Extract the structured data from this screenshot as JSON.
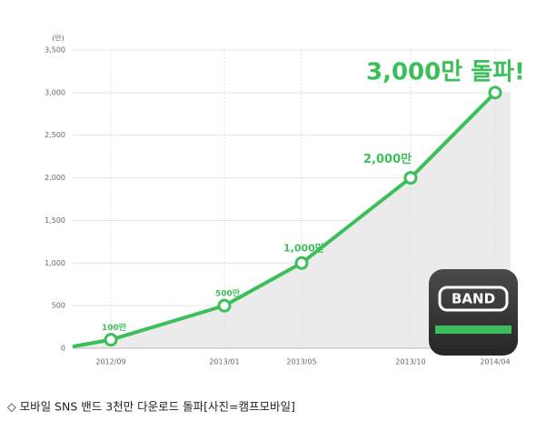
{
  "chart_data": {
    "type": "line",
    "y_unit": "(만)",
    "categories": [
      null,
      "2012/09",
      "2013/01",
      "2013/05",
      "2013/10",
      "2014/04"
    ],
    "values": [
      20,
      100,
      500,
      1000,
      2000,
      3000
    ],
    "value_labels": [
      null,
      "100만",
      "500만",
      "1,000만",
      "2,000만",
      "3,000만 돌파!"
    ],
    "color": "#3cbf5a",
    "ylim": [
      0,
      3500
    ],
    "yticks": [
      0,
      500,
      {
        "value": 1000,
        "label": "1,000"
      },
      {
        "value": 1500,
        "label": "1,500"
      },
      {
        "value": 2000,
        "label": "2,000"
      },
      {
        "value": 2500,
        "label": "2,500"
      },
      {
        "value": 3000,
        "label": "3,000"
      },
      {
        "value": 3500,
        "label": "3,500"
      }
    ],
    "grid": true,
    "icon_label": "BAND"
  },
  "caption": "◇ 모바일 SNS 밴드 3천만 다운로드 돌파[사진=캠프모바일]"
}
